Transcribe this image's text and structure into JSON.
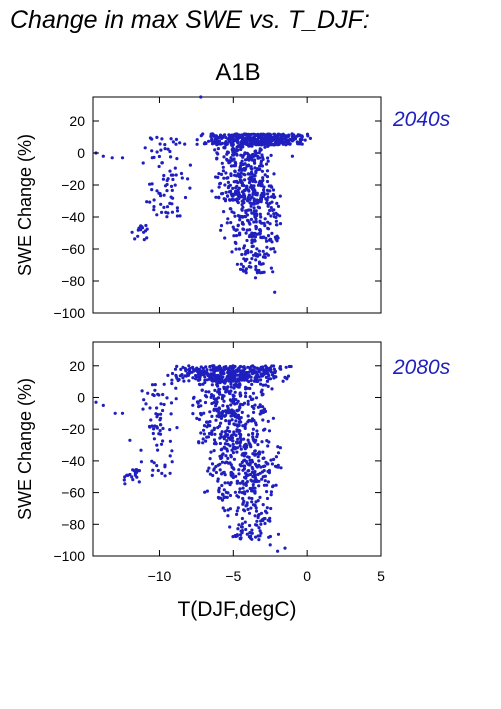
{
  "figure": {
    "title": "Change in max SWE vs. T_DJF:",
    "subtitle": "A1B",
    "xlabel": "T(DJF,degC)",
    "ylabel": "SWE Change (%)",
    "point_color": "#1f1fbf",
    "period_color": "#1f1fbf"
  },
  "chart_data": [
    {
      "type": "scatter",
      "label": "2040s",
      "xlim": [
        -14.5,
        5
      ],
      "ylim": [
        -100,
        35
      ],
      "xticks": [
        -10,
        -5,
        0,
        5
      ],
      "yticks": [
        20,
        0,
        -20,
        -40,
        -60,
        -80,
        -100
      ],
      "show_xtick_labels": false,
      "grid": false,
      "points_sampled_n": 1500,
      "clusters": [
        {
          "x": [
            -7.5,
            0.5
          ],
          "y": [
            5,
            12
          ],
          "n": 380
        },
        {
          "x": [
            -6.5,
            -2.0
          ],
          "y": [
            -30,
            5
          ],
          "n": 300
        },
        {
          "x": [
            -6.0,
            -1.5
          ],
          "y": [
            -55,
            -25
          ],
          "n": 200
        },
        {
          "x": [
            -5.5,
            -2.0
          ],
          "y": [
            -75,
            -55
          ],
          "n": 70
        },
        {
          "x": [
            -11.5,
            -7.5
          ],
          "y": [
            -40,
            10
          ],
          "n": 80
        },
        {
          "x": [
            -12.0,
            -10.5
          ],
          "y": [
            -55,
            -45
          ],
          "n": 15
        }
      ],
      "outliers": [
        [
          -14.3,
          0
        ],
        [
          -13.8,
          -2
        ],
        [
          -13.2,
          -3
        ],
        [
          -12.5,
          -3
        ],
        [
          -2.2,
          -87
        ],
        [
          -7.2,
          35
        ],
        [
          -3.5,
          -78
        ],
        [
          -1.0,
          -2
        ]
      ]
    },
    {
      "type": "scatter",
      "label": "2080s",
      "xlim": [
        -14.5,
        5
      ],
      "ylim": [
        -100,
        35
      ],
      "xticks": [
        -10,
        -5,
        0,
        5
      ],
      "yticks": [
        20,
        0,
        -20,
        -40,
        -60,
        -80,
        -100
      ],
      "show_xtick_labels": true,
      "grid": false,
      "points_sampled_n": 1600,
      "clusters": [
        {
          "x": [
            -9.5,
            -1.0
          ],
          "y": [
            10,
            20
          ],
          "n": 380
        },
        {
          "x": [
            -8.0,
            -2.0
          ],
          "y": [
            -30,
            10
          ],
          "n": 330
        },
        {
          "x": [
            -7.0,
            -1.5
          ],
          "y": [
            -65,
            -30
          ],
          "n": 240
        },
        {
          "x": [
            -6.0,
            -1.5
          ],
          "y": [
            -90,
            -65
          ],
          "n": 90
        },
        {
          "x": [
            -11.5,
            -8.5
          ],
          "y": [
            -50,
            10
          ],
          "n": 70
        },
        {
          "x": [
            -12.5,
            -11.0
          ],
          "y": [
            -55,
            -45
          ],
          "n": 20
        }
      ],
      "outliers": [
        [
          -14.3,
          -3
        ],
        [
          -13.8,
          -5
        ],
        [
          -13.0,
          -10
        ],
        [
          -12.5,
          -10
        ],
        [
          -12.0,
          -27
        ],
        [
          -2.0,
          -97
        ],
        [
          -1.5,
          -95
        ],
        [
          -2.5,
          -93
        ]
      ]
    }
  ]
}
